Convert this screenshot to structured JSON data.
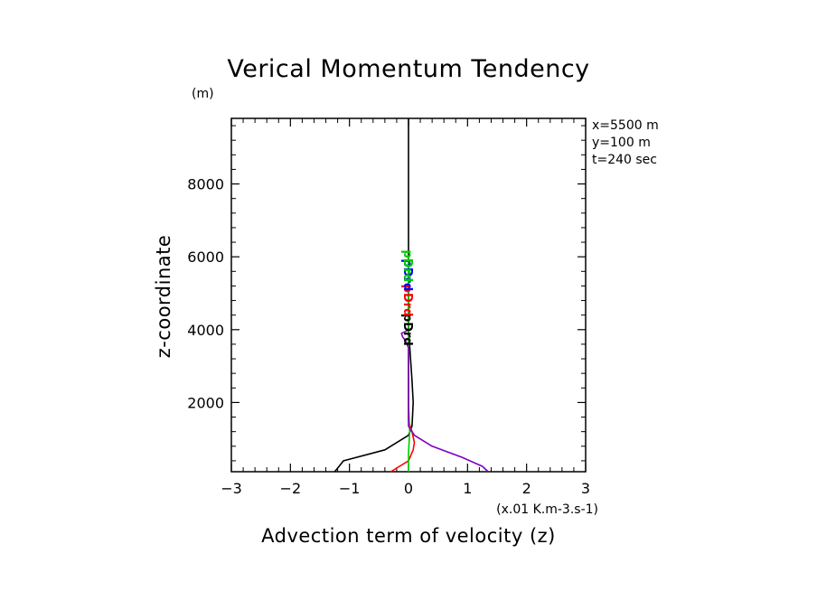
{
  "chart_data": {
    "type": "line",
    "title": "Verical Momentum Tendency",
    "xlabel": "Advection term of velocity (z)",
    "ylabel": "z-coordinate",
    "x_units": "(x.01 K.m-3.s-1)",
    "y_units": "(m)",
    "xlim": [
      -3,
      3
    ],
    "ylim": [
      100,
      9800
    ],
    "xticks": [
      -3,
      -2,
      -1,
      0,
      1,
      2,
      3
    ],
    "xtick_labels": [
      "−3",
      "−2",
      "−1",
      "0",
      "1",
      "2",
      "3"
    ],
    "yticks": [
      2000,
      4000,
      6000,
      8000
    ],
    "ytick_labels": [
      "2000",
      "4000",
      "6000",
      "8000"
    ],
    "info": [
      "x=5500 m",
      "y=100 m",
      "t=240 sec"
    ],
    "grid": false,
    "series": [
      {
        "color": "#000000",
        "x": [
          -1.25,
          -1.2,
          -1.1,
          -0.4,
          0.0,
          0.06,
          0.08,
          0.06,
          0.03,
          0.0,
          0.0,
          0.0
        ],
        "y": [
          100,
          200,
          400,
          700,
          1100,
          1350,
          2000,
          2600,
          3300,
          4000,
          6000,
          9800
        ]
      },
      {
        "color": "#ff0000",
        "x": [
          -0.3,
          -0.2,
          0.0,
          0.08,
          0.1,
          0.06,
          0.0,
          0.0,
          0.0,
          0.0
        ],
        "y": [
          100,
          200,
          400,
          700,
          900,
          1200,
          1500,
          2500,
          3500,
          4500
        ]
      },
      {
        "color": "#00cc00",
        "x": [
          0.0,
          0.0,
          0.02,
          0.0,
          0.0,
          0.0
        ],
        "y": [
          100,
          600,
          1200,
          2000,
          4000,
          6000
        ]
      },
      {
        "color": "#8000c0",
        "x": [
          1.35,
          1.25,
          0.9,
          0.4,
          0.1,
          0.0,
          0.0,
          -0.05,
          -0.1,
          -0.12,
          -0.05,
          0.0
        ],
        "y": [
          100,
          250,
          500,
          800,
          1100,
          1350,
          3500,
          3700,
          3800,
          3900,
          3950,
          4000
        ]
      }
    ],
    "annotations": [
      {
        "text": "pDrd",
        "color": "#000000",
        "x": 0.0,
        "y": 4000
      },
      {
        "text": "pDrd",
        "color": "#ff0000",
        "x": 0.0,
        "y": 4800
      },
      {
        "text": "pDrd",
        "color": "#0000ff",
        "x": 0.0,
        "y": 5500
      },
      {
        "text": "pDrd",
        "color": "#00cc00",
        "x": 0.0,
        "y": 5750
      }
    ]
  }
}
